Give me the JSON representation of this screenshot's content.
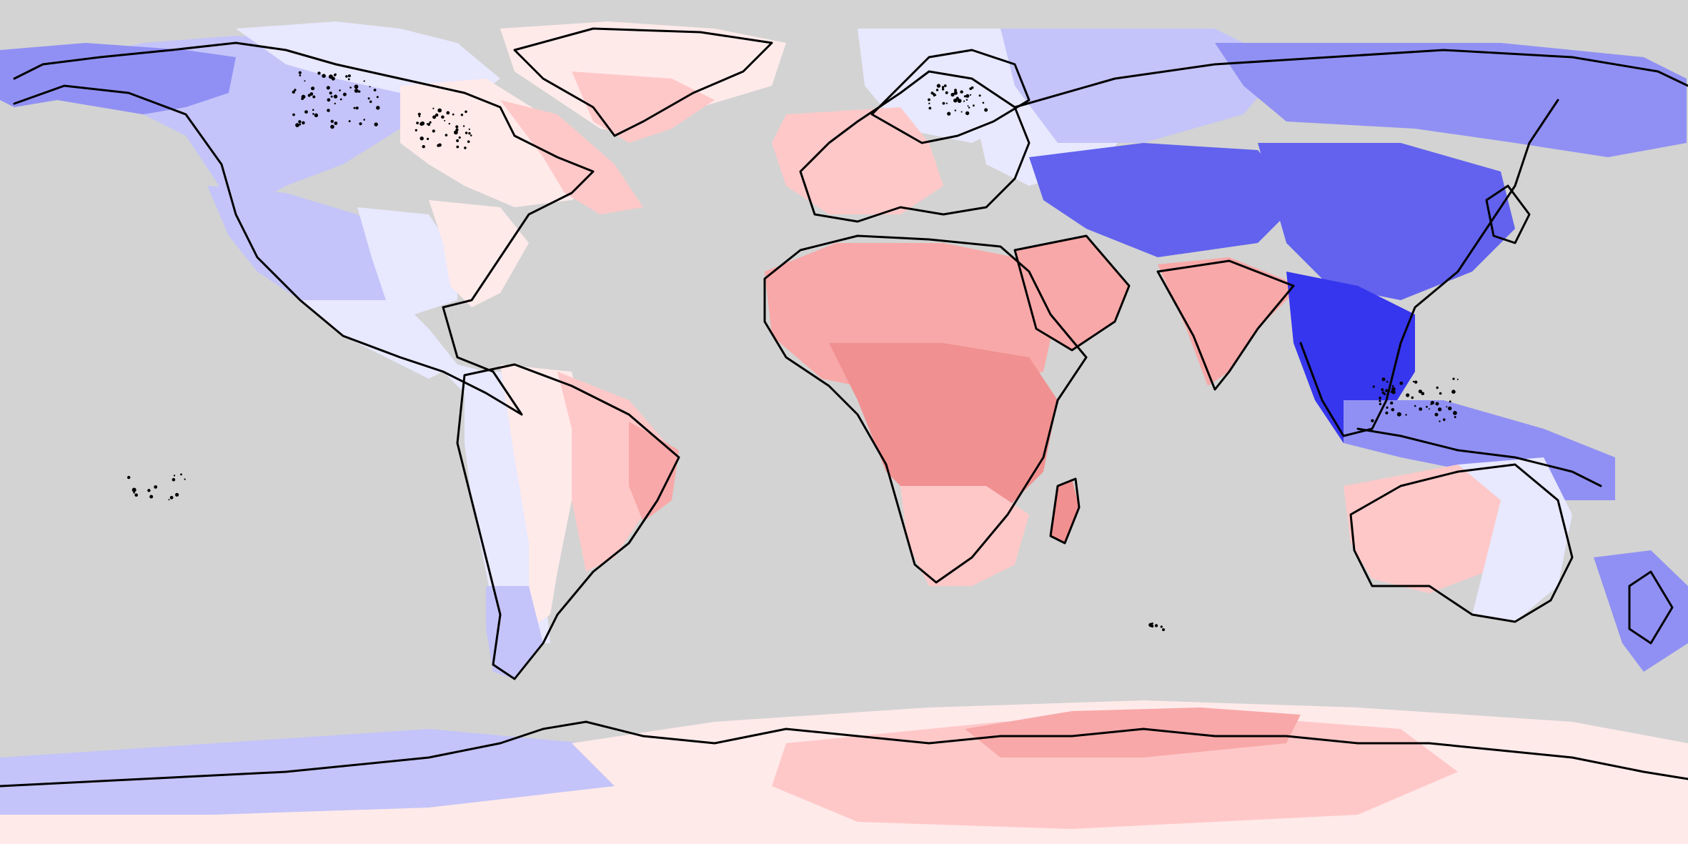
{
  "map": {
    "projection": "equirectangular",
    "extent": {
      "lon": [
        -180,
        180
      ],
      "lat": [
        -90,
        90
      ]
    },
    "ocean_masked": true,
    "mask_color": "#d3d3d3",
    "coastline_color": "#000000",
    "colorscale": {
      "type": "diverging",
      "negative_color": "#3c3cf0",
      "neutral_color": "#ffffff",
      "positive_color": "#f08080",
      "levels": [
        {
          "name": "neg-4",
          "color": "#3636ee"
        },
        {
          "name": "neg-3",
          "color": "#6262ee"
        },
        {
          "name": "neg-2",
          "color": "#9090f4"
        },
        {
          "name": "neg-1",
          "color": "#c4c4fa"
        },
        {
          "name": "neg-0",
          "color": "#e8e8fe"
        },
        {
          "name": "pos-0",
          "color": "#ffeaea"
        },
        {
          "name": "pos-1",
          "color": "#ffc8c8"
        },
        {
          "name": "pos-2",
          "color": "#f8a8a8"
        },
        {
          "name": "pos-3",
          "color": "#f19090"
        }
      ]
    },
    "regions": [
      {
        "name": "alaska-yukon",
        "level": "neg-2"
      },
      {
        "name": "western-canada",
        "level": "neg-1"
      },
      {
        "name": "canadian-arctic-archipelago",
        "level": "neg-0"
      },
      {
        "name": "eastern-canada",
        "level": "pos-0"
      },
      {
        "name": "labrador-quebec-coast",
        "level": "pos-1"
      },
      {
        "name": "western-usa",
        "level": "neg-1"
      },
      {
        "name": "great-plains",
        "level": "neg-0"
      },
      {
        "name": "eastern-usa",
        "level": "pos-0"
      },
      {
        "name": "mexico",
        "level": "neg-0"
      },
      {
        "name": "central-america",
        "level": "neg-0"
      },
      {
        "name": "greenland-coast",
        "level": "pos-0"
      },
      {
        "name": "greenland-south",
        "level": "pos-1"
      },
      {
        "name": "andes-west-south-america",
        "level": "neg-0"
      },
      {
        "name": "amazon",
        "level": "pos-0"
      },
      {
        "name": "eastern-brazil",
        "level": "pos-1"
      },
      {
        "name": "northeast-brazil",
        "level": "pos-2"
      },
      {
        "name": "patagonia",
        "level": "neg-1"
      },
      {
        "name": "western-europe",
        "level": "pos-1"
      },
      {
        "name": "scandinavia",
        "level": "neg-0"
      },
      {
        "name": "eastern-europe",
        "level": "neg-0"
      },
      {
        "name": "north-africa-sahara",
        "level": "pos-2"
      },
      {
        "name": "central-africa",
        "level": "pos-3"
      },
      {
        "name": "southern-africa",
        "level": "pos-1"
      },
      {
        "name": "madagascar",
        "level": "pos-3"
      },
      {
        "name": "arabian-peninsula",
        "level": "pos-2"
      },
      {
        "name": "india",
        "level": "pos-2"
      },
      {
        "name": "siberia-west",
        "level": "neg-1"
      },
      {
        "name": "siberia-east",
        "level": "neg-2"
      },
      {
        "name": "central-asia",
        "level": "neg-3"
      },
      {
        "name": "china",
        "level": "neg-3"
      },
      {
        "name": "southeast-asia",
        "level": "neg-4"
      },
      {
        "name": "maritime-southeast-asia",
        "level": "neg-2"
      },
      {
        "name": "western-australia",
        "level": "pos-1"
      },
      {
        "name": "eastern-australia",
        "level": "neg-0"
      },
      {
        "name": "new-zealand",
        "level": "neg-2"
      },
      {
        "name": "west-antarctica",
        "level": "neg-1"
      },
      {
        "name": "east-antarctica",
        "level": "pos-0"
      },
      {
        "name": "east-antarctica-core",
        "level": "pos-1"
      },
      {
        "name": "east-antarctica-coast",
        "level": "pos-2"
      }
    ]
  }
}
